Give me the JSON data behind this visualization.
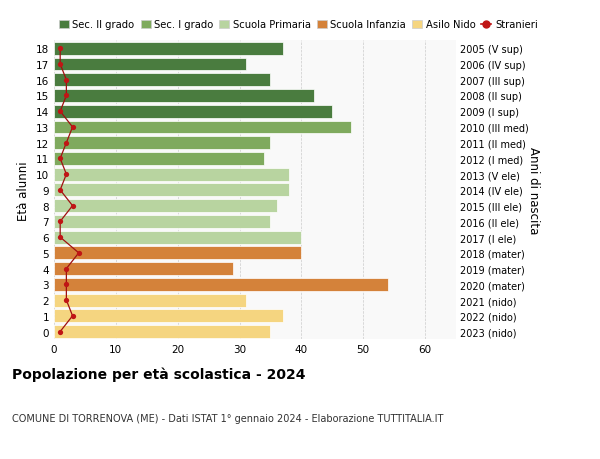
{
  "ages": [
    0,
    1,
    2,
    3,
    4,
    5,
    6,
    7,
    8,
    9,
    10,
    11,
    12,
    13,
    14,
    15,
    16,
    17,
    18
  ],
  "values": [
    35,
    37,
    31,
    54,
    29,
    40,
    40,
    35,
    36,
    38,
    38,
    34,
    35,
    48,
    45,
    42,
    35,
    31,
    37
  ],
  "stranieri": [
    1,
    3,
    2,
    2,
    2,
    4,
    1,
    1,
    3,
    1,
    2,
    1,
    2,
    3,
    1,
    2,
    2,
    1,
    1
  ],
  "right_labels": [
    "2023 (nido)",
    "2022 (nido)",
    "2021 (nido)",
    "2020 (mater)",
    "2019 (mater)",
    "2018 (mater)",
    "2017 (I ele)",
    "2016 (II ele)",
    "2015 (III ele)",
    "2014 (IV ele)",
    "2013 (V ele)",
    "2012 (I med)",
    "2011 (II med)",
    "2010 (III med)",
    "2009 (I sup)",
    "2008 (II sup)",
    "2007 (III sup)",
    "2006 (IV sup)",
    "2005 (V sup)"
  ],
  "colors": {
    "sec2": "#4a7c3f",
    "sec1": "#7faa5e",
    "primaria": "#b8d4a0",
    "infanzia": "#d4823a",
    "nido": "#f5d580",
    "stranieri_line": "#a01010",
    "stranieri_marker": "#c01515"
  },
  "bar_colors": [
    "#f5d580",
    "#f5d580",
    "#f5d580",
    "#d4823a",
    "#d4823a",
    "#d4823a",
    "#b8d4a0",
    "#b8d4a0",
    "#b8d4a0",
    "#b8d4a0",
    "#b8d4a0",
    "#7faa5e",
    "#7faa5e",
    "#7faa5e",
    "#4a7c3f",
    "#4a7c3f",
    "#4a7c3f",
    "#4a7c3f",
    "#4a7c3f"
  ],
  "legend_labels": [
    "Sec. II grado",
    "Sec. I grado",
    "Scuola Primaria",
    "Scuola Infanzia",
    "Asilo Nido",
    "Stranieri"
  ],
  "legend_colors": [
    "#4a7c3f",
    "#7faa5e",
    "#b8d4a0",
    "#d4823a",
    "#f5d580",
    "#c01515"
  ],
  "title_bold": "Popolazione per età scolastica - 2024",
  "subtitle": "COMUNE DI TORRENOVA (ME) - Dati ISTAT 1° gennaio 2024 - Elaborazione TUTTITALIA.IT",
  "ylabel_left": "Età alunni",
  "ylabel_right": "Anni di nascita",
  "xlim": [
    0,
    65
  ],
  "background_color": "#ffffff",
  "plot_bg": "#f9f9f9"
}
